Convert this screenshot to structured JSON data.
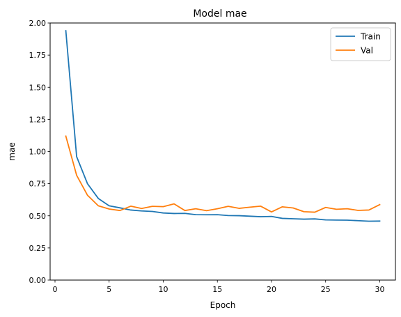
{
  "chart_data": {
    "type": "line",
    "title": "Model mae",
    "xlabel": "Epoch",
    "ylabel": "mae",
    "xlim": [
      -0.45,
      31.45
    ],
    "ylim": [
      0.0,
      2.0
    ],
    "xticks": [
      0,
      5,
      10,
      15,
      20,
      25,
      30
    ],
    "xtick_labels": [
      "0",
      "5",
      "10",
      "15",
      "20",
      "25",
      "30"
    ],
    "yticks": [
      0.0,
      0.25,
      0.5,
      0.75,
      1.0,
      1.25,
      1.5,
      1.75,
      2.0
    ],
    "ytick_labels": [
      "0.00",
      "0.25",
      "0.50",
      "0.75",
      "1.00",
      "1.25",
      "1.50",
      "1.75",
      "2.00"
    ],
    "grid": false,
    "legend_position": "top-right",
    "x": [
      1,
      2,
      3,
      4,
      5,
      6,
      7,
      8,
      9,
      10,
      11,
      12,
      13,
      14,
      15,
      16,
      17,
      18,
      19,
      20,
      21,
      22,
      23,
      24,
      25,
      26,
      27,
      28,
      29,
      30
    ],
    "series": [
      {
        "name": "Train",
        "color": "#1f77b4",
        "values": [
          1.94,
          0.96,
          0.75,
          0.635,
          0.578,
          0.562,
          0.545,
          0.538,
          0.534,
          0.522,
          0.518,
          0.519,
          0.509,
          0.508,
          0.509,
          0.502,
          0.501,
          0.497,
          0.493,
          0.495,
          0.48,
          0.477,
          0.474,
          0.476,
          0.468,
          0.467,
          0.466,
          0.462,
          0.458,
          0.459
        ]
      },
      {
        "name": "Val",
        "color": "#ff7f0e",
        "values": [
          1.12,
          0.815,
          0.66,
          0.578,
          0.553,
          0.541,
          0.575,
          0.557,
          0.574,
          0.571,
          0.593,
          0.541,
          0.555,
          0.54,
          0.555,
          0.574,
          0.558,
          0.567,
          0.575,
          0.53,
          0.57,
          0.561,
          0.532,
          0.528,
          0.565,
          0.551,
          0.555,
          0.542,
          0.545,
          0.587
        ]
      }
    ]
  }
}
